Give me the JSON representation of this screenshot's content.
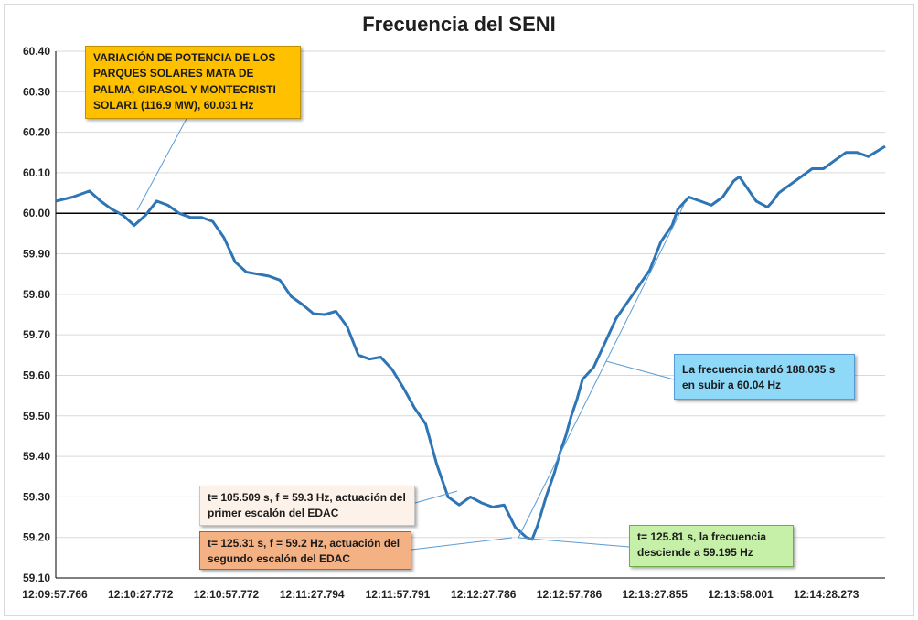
{
  "chart_data": {
    "type": "line",
    "title": "Frecuencia del SENI",
    "xlabel": "",
    "ylabel": "",
    "ylim": [
      59.1,
      60.4
    ],
    "yticks": [
      "60.40",
      "60.30",
      "60.20",
      "60.10",
      "60.00",
      "59.90",
      "59.80",
      "59.70",
      "59.60",
      "59.50",
      "59.40",
      "59.30",
      "59.20",
      "59.10"
    ],
    "xticks": [
      "12:09:57.766",
      "12:10:27.772",
      "12:10:57.772",
      "12:11:27.794",
      "12:11:57.791",
      "12:12:27.786",
      "12:12:57.786",
      "12:13:27.855",
      "12:13:58.001",
      "12:14:28.273"
    ],
    "xlim": [
      0,
      296
    ],
    "reference_line": 60.0,
    "series": [
      {
        "name": "Frecuencia",
        "color": "#2e75b6",
        "x": [
          0,
          6,
          12,
          16,
          20,
          24,
          28,
          32,
          36,
          40,
          44,
          48,
          52,
          56,
          60,
          64,
          68,
          72,
          76,
          80,
          84,
          88,
          92,
          96,
          100,
          104,
          108,
          112,
          116,
          120,
          124,
          128,
          132,
          136,
          140,
          144,
          148,
          152,
          156,
          160,
          164,
          168,
          170,
          172,
          175,
          178,
          180,
          182,
          184,
          186,
          188,
          192,
          196,
          200,
          204,
          208,
          212,
          216,
          220,
          222,
          226,
          230,
          234,
          238,
          240,
          242,
          244,
          246,
          250,
          254,
          256,
          258,
          262,
          266,
          270,
          274,
          278,
          282,
          286,
          290,
          296
        ],
        "values": [
          60.03,
          60.04,
          60.055,
          60.03,
          60.01,
          59.995,
          59.97,
          59.995,
          60.03,
          60.02,
          60.0,
          59.99,
          59.99,
          59.98,
          59.94,
          59.88,
          59.855,
          59.85,
          59.845,
          59.835,
          59.795,
          59.775,
          59.752,
          59.75,
          59.758,
          59.72,
          59.65,
          59.64,
          59.645,
          59.615,
          59.57,
          59.52,
          59.48,
          59.38,
          59.3,
          59.28,
          59.3,
          59.285,
          59.275,
          59.28,
          59.225,
          59.2,
          59.195,
          59.23,
          59.3,
          59.36,
          59.41,
          59.45,
          59.5,
          59.54,
          59.59,
          59.62,
          59.68,
          59.74,
          59.78,
          59.82,
          59.86,
          59.93,
          59.97,
          60.01,
          60.04,
          60.03,
          60.02,
          60.04,
          60.06,
          60.08,
          60.09,
          60.07,
          60.03,
          60.015,
          60.03,
          60.05,
          60.07,
          60.09,
          60.11,
          60.11,
          60.13,
          60.15,
          60.15,
          60.14,
          60.165
        ]
      }
    ]
  },
  "annotations": {
    "solar": "VARIACIÓN DE POTENCIA DE LOS PARQUES SOLARES MATA DE PALMA, GIRASOL Y MONTECRISTI SOLAR1 (116.9 MW), 60.031 Hz",
    "rise": "La frecuencia tardó 188.035 s en subir a 60.04 Hz",
    "edac1": "t= 105.509 s, f = 59.3 Hz, actuación del primer escalón del EDAC",
    "edac2": "t= 125.31 s, f = 59.2 Hz, actuación del segundo escalón del EDAC",
    "min": "t= 125.81 s, la frecuencia desciende a 59.195 Hz"
  },
  "colors": {
    "line": "#2e75b6",
    "grid": "#d9d9d9",
    "solar_box": "#ffc000",
    "rise_box": "#8ed8f8",
    "edac1_box": "#fdf2e9",
    "edac2_box": "#f4b183",
    "min_box": "#c6efa8"
  }
}
